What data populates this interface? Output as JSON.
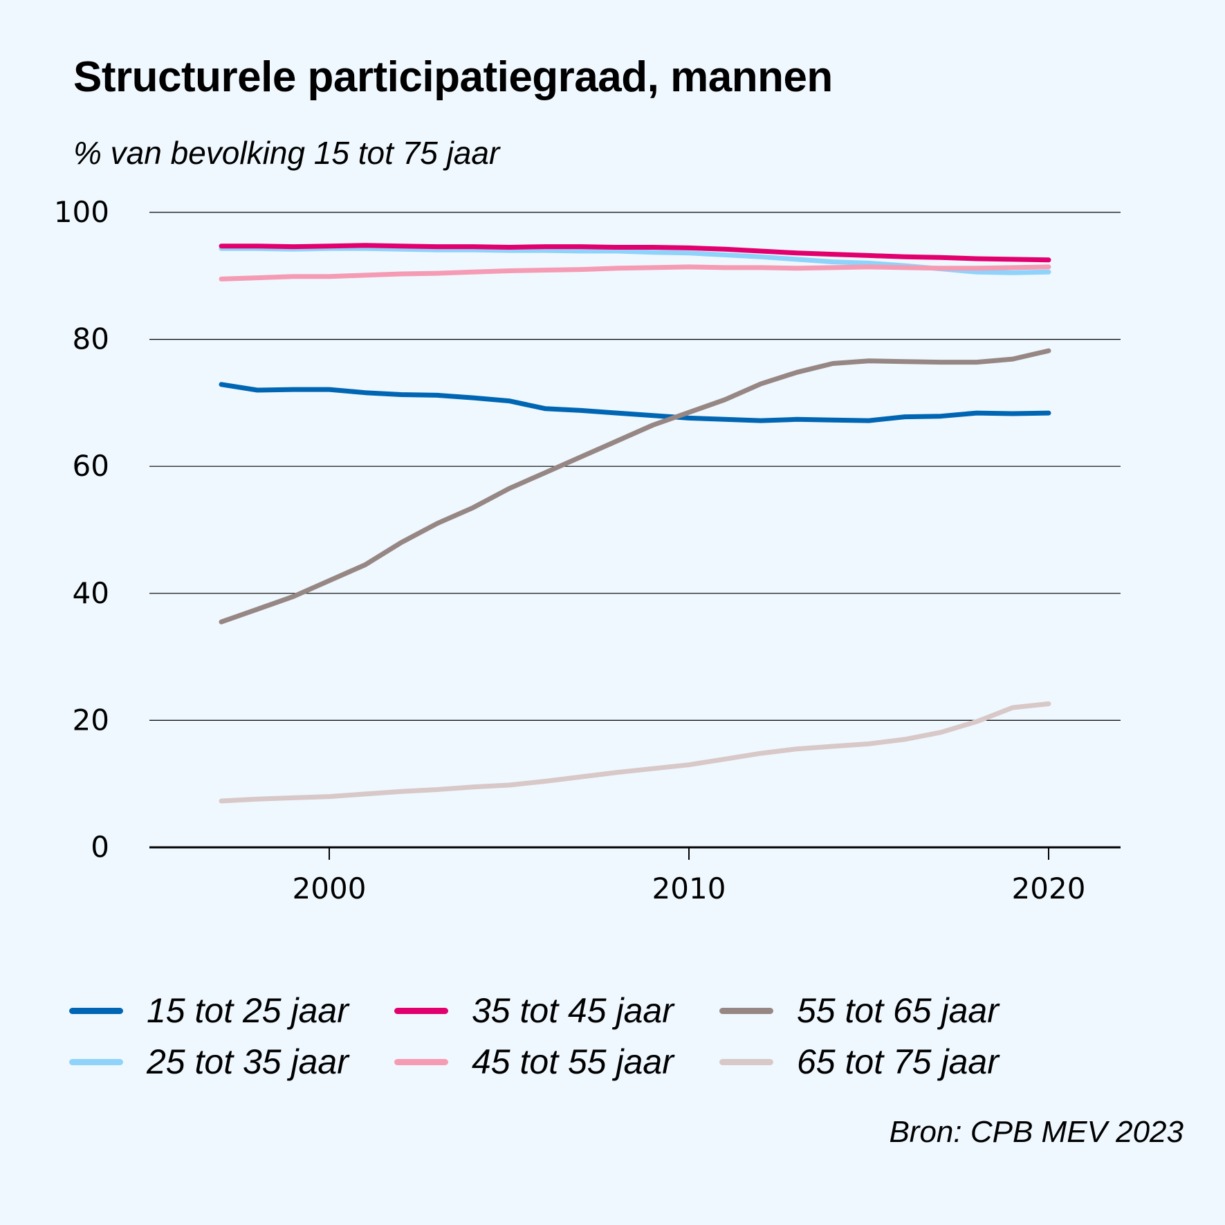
{
  "chart_data": {
    "type": "line",
    "title": "Structurele participatiegraad, mannen",
    "subtitle": "% van bevolking 15 tot 75 jaar",
    "source": "Bron: CPB MEV 2023",
    "xlabel": "",
    "ylabel": "",
    "xlim": [
      1995,
      2022
    ],
    "ylim": [
      0,
      100
    ],
    "yticks": [
      0,
      20,
      40,
      60,
      80,
      100
    ],
    "xticks": [
      2000,
      2010,
      2020
    ],
    "grid": true,
    "x": [
      1997,
      1998,
      1999,
      2000,
      2001,
      2002,
      2003,
      2004,
      2005,
      2006,
      2007,
      2008,
      2009,
      2010,
      2011,
      2012,
      2013,
      2014,
      2015,
      2016,
      2017,
      2018,
      2019,
      2020
    ],
    "series": [
      {
        "name": "15 tot 25 jaar",
        "color": "#0066b3",
        "values": [
          72.9,
          72.0,
          72.1,
          72.1,
          71.6,
          71.3,
          71.2,
          70.8,
          70.3,
          69.1,
          68.8,
          68.4,
          68.0,
          67.6,
          67.4,
          67.2,
          67.4,
          67.3,
          67.2,
          67.8,
          67.9,
          68.4,
          68.3,
          68.4
        ]
      },
      {
        "name": "25 tot 35 jaar",
        "color": "#8fd3fb",
        "values": [
          94.3,
          94.3,
          94.2,
          94.3,
          94.3,
          94.2,
          94.1,
          94.1,
          94.0,
          94.0,
          93.9,
          93.9,
          93.7,
          93.6,
          93.3,
          93.0,
          92.6,
          92.2,
          92.0,
          91.6,
          91.1,
          90.6,
          90.5,
          90.6
        ]
      },
      {
        "name": "35 tot 45 jaar",
        "color": "#e2006f",
        "values": [
          94.7,
          94.7,
          94.6,
          94.7,
          94.8,
          94.7,
          94.6,
          94.6,
          94.5,
          94.6,
          94.6,
          94.5,
          94.5,
          94.4,
          94.2,
          93.9,
          93.6,
          93.4,
          93.2,
          93.0,
          92.9,
          92.7,
          92.6,
          92.5
        ]
      },
      {
        "name": "45 tot 55 jaar",
        "color": "#f59cb4",
        "values": [
          89.5,
          89.7,
          89.9,
          89.9,
          90.1,
          90.3,
          90.4,
          90.6,
          90.8,
          90.9,
          91.0,
          91.2,
          91.3,
          91.4,
          91.3,
          91.3,
          91.2,
          91.3,
          91.4,
          91.3,
          91.2,
          91.2,
          91.3,
          91.4
        ]
      },
      {
        "name": "55 tot 65 jaar",
        "color": "#968784",
        "values": [
          35.5,
          37.5,
          39.5,
          42.0,
          44.5,
          48.0,
          51.0,
          53.5,
          56.5,
          59.0,
          61.5,
          64.0,
          66.5,
          68.5,
          70.5,
          73.0,
          74.8,
          76.2,
          76.6,
          76.5,
          76.4,
          76.4,
          76.9,
          78.2
        ]
      },
      {
        "name": "65 tot 75 jaar",
        "color": "#d8c8c8",
        "values": [
          7.3,
          7.6,
          7.8,
          8.0,
          8.4,
          8.8,
          9.1,
          9.5,
          9.8,
          10.4,
          11.1,
          11.8,
          12.4,
          13.0,
          13.9,
          14.8,
          15.5,
          15.9,
          16.3,
          17.0,
          18.1,
          19.8,
          22.0,
          22.6
        ]
      }
    ]
  }
}
